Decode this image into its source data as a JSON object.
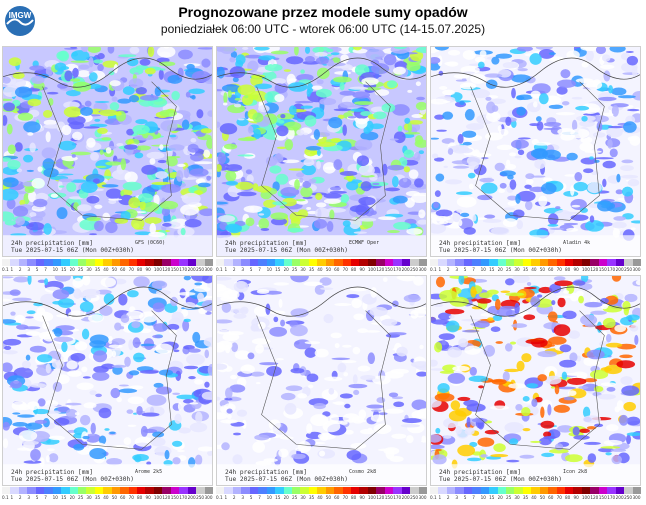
{
  "header": {
    "logo_text": "IMGW",
    "title": "Prognozowane przez modele sumy opadów",
    "subtitle": "poniedziałek 06:00 UTC - wtorek 06:00 UTC (14-15.07.2025)"
  },
  "panels": [
    {
      "line1": "24h precipitation [mm]",
      "line2": "Tue 2025-07-15 06Z (Mon 00Z+030h)",
      "model": "GFS (0C60)",
      "intensity": "heavy"
    },
    {
      "line1": "24h precipitation [mm]",
      "line2": "Tue 2025-07-15 06Z (Mon 00Z+030h)",
      "model": "ECMWF Oper",
      "intensity": "heavy"
    },
    {
      "line1": "24h precipitation [mm]",
      "line2": "Tue 2025-07-15 06Z (Mon 00Z+030h)",
      "model": "Aladin 4k",
      "intensity": "medium"
    },
    {
      "line1": "24h precipitation [mm]",
      "line2": "Tue 2025-07-15 06Z (Mon 00Z+030h)",
      "model": "Arome 2k5",
      "intensity": "medium"
    },
    {
      "line1": "24h precipitation [mm]",
      "line2": "Tue 2025-07-15 06Z (Mon 00Z+030h)",
      "model": "Cosmo 2k8",
      "intensity": "light"
    },
    {
      "line1": "24h precipitation [mm]",
      "line2": "Tue 2025-07-15 06Z (Mon 00Z+030h)",
      "model": "Icon 2k8",
      "intensity": "mixed"
    }
  ],
  "colorbar": {
    "ticks": [
      "0.1",
      "1",
      "2",
      "3",
      "5",
      "7",
      "10",
      "15",
      "20",
      "25",
      "30",
      "35",
      "40",
      "50",
      "60",
      "70",
      "80",
      "90",
      "100",
      "120",
      "150",
      "170",
      "200",
      "250",
      "300"
    ],
    "colors": [
      "#f2f2f2",
      "#d9d9ff",
      "#b3b3ff",
      "#8c8cff",
      "#6666ff",
      "#4d7fff",
      "#3399ff",
      "#33ccff",
      "#66ffcc",
      "#99ff66",
      "#ccff33",
      "#ffff00",
      "#ffcc00",
      "#ff9900",
      "#ff6600",
      "#ff3300",
      "#e60000",
      "#b30000",
      "#800000",
      "#990066",
      "#cc00cc",
      "#9933ff",
      "#6600cc",
      "#cccccc",
      "#999999"
    ]
  }
}
